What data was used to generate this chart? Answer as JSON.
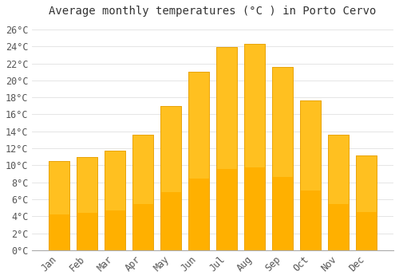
{
  "title": "Average monthly temperatures (°C ) in Porto Cervo",
  "months": [
    "Jan",
    "Feb",
    "Mar",
    "Apr",
    "May",
    "Jun",
    "Jul",
    "Aug",
    "Sep",
    "Oct",
    "Nov",
    "Dec"
  ],
  "values": [
    10.5,
    11.0,
    11.7,
    13.6,
    17.0,
    21.0,
    23.9,
    24.3,
    21.6,
    17.6,
    13.6,
    11.2
  ],
  "bar_color_top": "#FFC020",
  "bar_color_bottom": "#FFB000",
  "bar_edge_color": "#E8A000",
  "background_color": "#FFFFFF",
  "grid_color": "#E0E0E0",
  "ylim": [
    0,
    27
  ],
  "ytick_max": 26,
  "ytick_step": 2,
  "title_fontsize": 10,
  "tick_fontsize": 8.5,
  "font_family": "monospace"
}
